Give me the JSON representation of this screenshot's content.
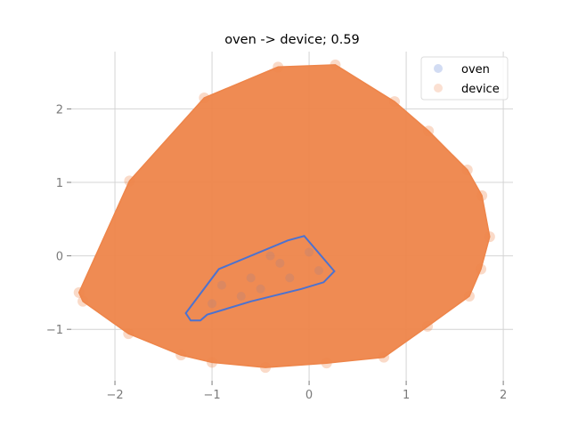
{
  "chart_data": {
    "type": "scatter",
    "title": "oven -> device; 0.59",
    "xlabel": "",
    "ylabel": "",
    "xlim": [
      -2.45,
      2.1
    ],
    "ylim": [
      -1.7,
      2.78
    ],
    "xticks": [
      -2,
      -1,
      0,
      1,
      2
    ],
    "yticks": [
      -1,
      0,
      1,
      2
    ],
    "xtick_labels": [
      "−2",
      "−1",
      "0",
      "1",
      "2"
    ],
    "ytick_labels": [
      "−1",
      "0",
      "1",
      "2"
    ],
    "grid": true,
    "legend_position": "top-right",
    "series": [
      {
        "name": "oven",
        "color": "#4c72d0",
        "point_alpha": 0.2,
        "hull": [
          [
            -0.05,
            0.27
          ],
          [
            0.26,
            -0.21
          ],
          [
            0.15,
            -0.36
          ],
          [
            -0.08,
            -0.45
          ],
          [
            -0.6,
            -0.62
          ],
          [
            -1.05,
            -0.8
          ],
          [
            -1.12,
            -0.88
          ],
          [
            -1.22,
            -0.88
          ],
          [
            -1.27,
            -0.78
          ],
          [
            -0.93,
            -0.18
          ],
          [
            -0.22,
            0.21
          ]
        ],
        "points": [
          [
            -0.9,
            -0.4
          ],
          [
            -0.6,
            -0.3
          ],
          [
            -0.3,
            -0.1
          ],
          [
            0.0,
            0.05
          ],
          [
            -1.0,
            -0.65
          ],
          [
            -0.5,
            -0.45
          ],
          [
            0.1,
            -0.2
          ],
          [
            -0.2,
            -0.3
          ],
          [
            -0.7,
            -0.55
          ],
          [
            -0.4,
            0.0
          ]
        ]
      },
      {
        "name": "device",
        "color": "#ee854a",
        "point_alpha": 0.2,
        "hull": [
          [
            -0.32,
            2.57
          ],
          [
            0.27,
            2.6
          ],
          [
            0.88,
            2.1
          ],
          [
            1.23,
            1.7
          ],
          [
            1.63,
            1.17
          ],
          [
            1.78,
            0.82
          ],
          [
            1.86,
            0.26
          ],
          [
            1.77,
            -0.18
          ],
          [
            1.65,
            -0.55
          ],
          [
            1.22,
            -0.96
          ],
          [
            0.77,
            -1.38
          ],
          [
            0.18,
            -1.46
          ],
          [
            -0.45,
            -1.52
          ],
          [
            -1.0,
            -1.45
          ],
          [
            -1.32,
            -1.35
          ],
          [
            -1.86,
            -1.06
          ],
          [
            -2.33,
            -0.62
          ],
          [
            -2.37,
            -0.5
          ],
          [
            -1.85,
            1.02
          ],
          [
            -1.08,
            2.15
          ]
        ]
      }
    ]
  }
}
